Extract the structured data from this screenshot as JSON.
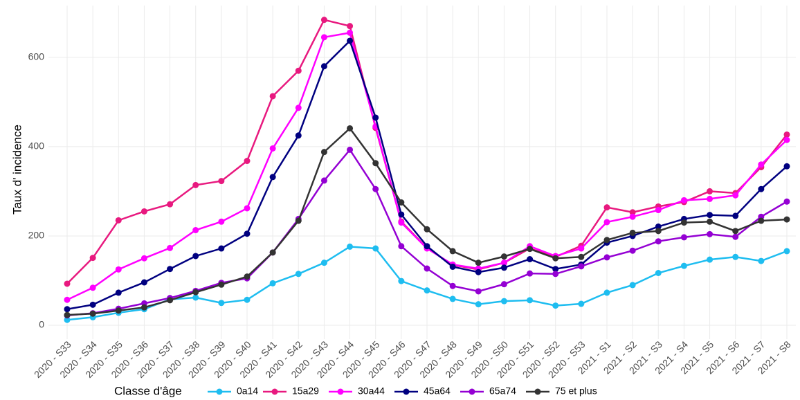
{
  "chart_data": {
    "type": "line",
    "y_label": "Taux d' incidence",
    "legend_title": "Classe d'âge",
    "legend_position": "bottom",
    "grid": true,
    "categories": [
      "2020 - S33",
      "2020 - S34",
      "2020 - S35",
      "2020 - S36",
      "2020 - S37",
      "2020 - S38",
      "2020 - S39",
      "2020 - S40",
      "2020 - S41",
      "2020 - S42",
      "2020 - S43",
      "2020 - S44",
      "2020 - S45",
      "2020 - S46",
      "2020 - S47",
      "2020 - S48",
      "2020 - S49",
      "2020 - S50",
      "2020 - S51",
      "2020 - S52",
      "2020 - S53",
      "2021 - S1",
      "2021 - S2",
      "2021 - S3",
      "2021 - S4",
      "2021 - S5",
      "2021 - S6",
      "2021 - S7",
      "2021 - S8"
    ],
    "ylim": [
      -31,
      716
    ],
    "yticks": [
      0,
      200,
      400,
      600
    ],
    "series": [
      {
        "name": "0a14",
        "color": "#1ebdf0",
        "values": [
          12,
          18,
          28,
          36,
          58,
          62,
          50,
          57,
          94,
          115,
          140,
          176,
          172,
          99,
          78,
          59,
          47,
          54,
          56,
          44,
          48,
          73,
          90,
          117,
          133,
          147,
          153,
          144,
          166
        ]
      },
      {
        "name": "15a29",
        "color": "#e8197f",
        "values": [
          93,
          151,
          235,
          255,
          271,
          314,
          323,
          368,
          513,
          570,
          684,
          670,
          442,
          232,
          173,
          135,
          125,
          140,
          172,
          153,
          178,
          264,
          253,
          266,
          276,
          300,
          296,
          354,
          427
        ]
      },
      {
        "name": "30a44",
        "color": "#ff00ff",
        "values": [
          57,
          84,
          125,
          150,
          173,
          213,
          232,
          262,
          396,
          487,
          645,
          655,
          445,
          230,
          172,
          136,
          127,
          140,
          177,
          155,
          172,
          231,
          243,
          258,
          280,
          283,
          291,
          360,
          415
        ]
      },
      {
        "name": "45a64",
        "color": "#000080",
        "values": [
          36,
          46,
          73,
          96,
          126,
          155,
          172,
          205,
          332,
          425,
          580,
          637,
          465,
          248,
          177,
          131,
          119,
          129,
          148,
          126,
          136,
          185,
          200,
          221,
          238,
          247,
          245,
          305,
          356
        ]
      },
      {
        "name": "65a74",
        "color": "#9400d3",
        "values": [
          22,
          27,
          37,
          49,
          61,
          77,
          95,
          105,
          163,
          238,
          324,
          393,
          305,
          177,
          127,
          88,
          76,
          92,
          116,
          115,
          132,
          152,
          167,
          188,
          197,
          204,
          198,
          243,
          277
        ]
      },
      {
        "name": "75 et plus",
        "color": "#333333",
        "values": [
          23,
          26,
          33,
          40,
          56,
          74,
          91,
          109,
          163,
          234,
          388,
          441,
          363,
          275,
          215,
          166,
          140,
          154,
          171,
          150,
          153,
          191,
          207,
          211,
          230,
          232,
          211,
          234,
          237
        ]
      }
    ]
  }
}
